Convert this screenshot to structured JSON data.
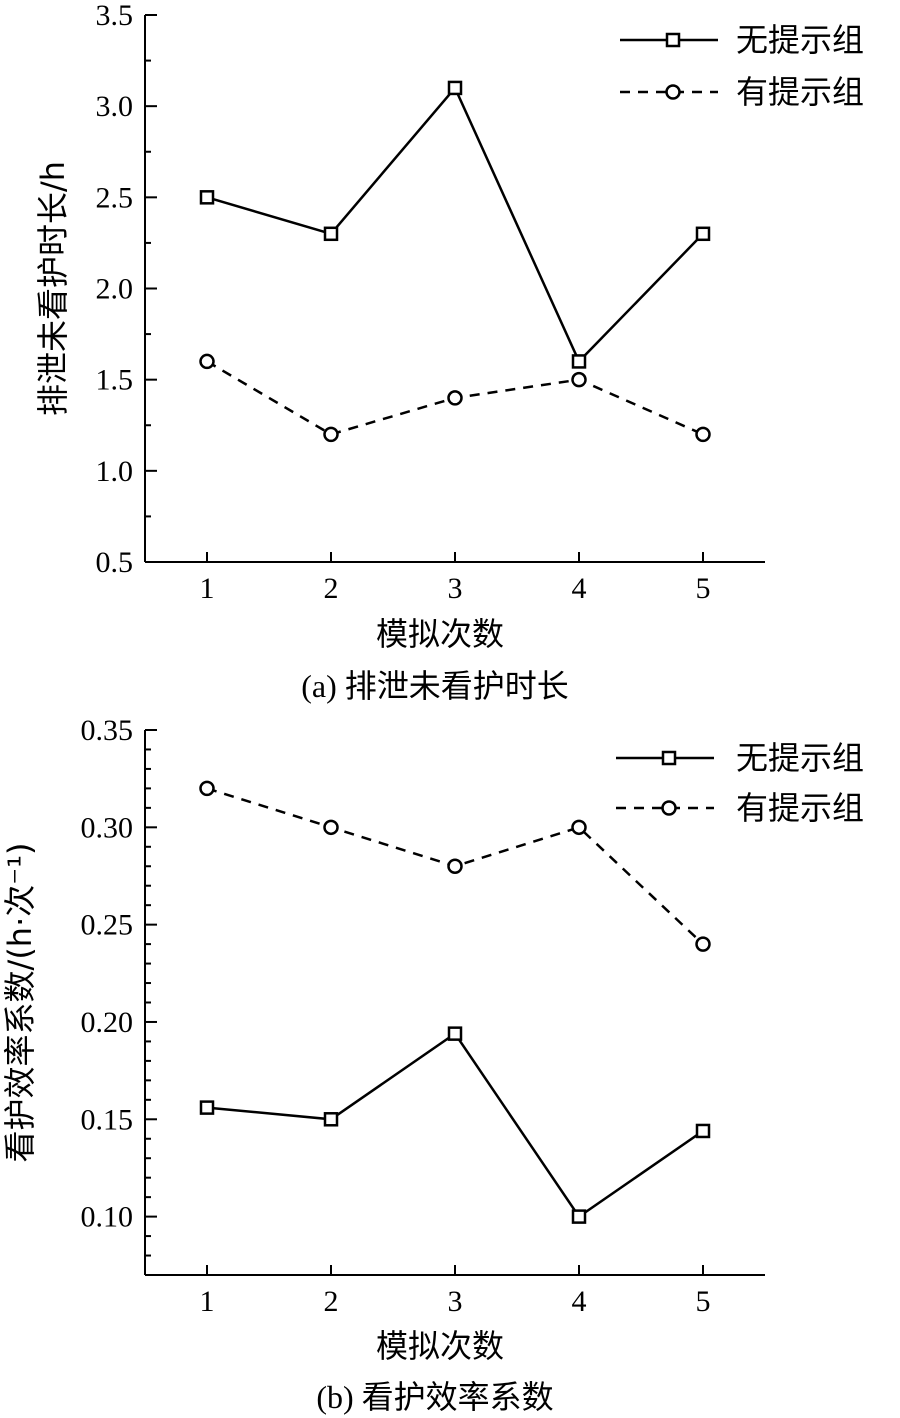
{
  "chart_data": [
    {
      "type": "line",
      "x": [
        1,
        2,
        3,
        4,
        5
      ],
      "xlim": [
        0.5,
        5.5
      ],
      "ylim": [
        0.5,
        3.5
      ],
      "yticks": [
        "0.5",
        "1.0",
        "1.5",
        "2.0",
        "2.5",
        "3.0",
        "3.5"
      ],
      "xticks": [
        "1",
        "2",
        "3",
        "4",
        "5"
      ],
      "xlabel": "模拟次数",
      "ylabel": "排泄未看护时长/h",
      "caption": "(a) 排泄未看护时长",
      "legend_position": "top-right",
      "grid": false,
      "series": [
        {
          "name": "无提示组",
          "marker": "square",
          "line": "solid",
          "values": [
            2.5,
            2.3,
            3.1,
            1.6,
            2.3
          ]
        },
        {
          "name": "有提示组",
          "marker": "circle",
          "line": "dashed",
          "values": [
            1.6,
            1.2,
            1.4,
            1.5,
            1.2
          ]
        }
      ]
    },
    {
      "type": "line",
      "x": [
        1,
        2,
        3,
        4,
        5
      ],
      "xlim": [
        0.5,
        5.5
      ],
      "ylim": [
        0.07,
        0.35
      ],
      "yticks": [
        "0.10",
        "0.15",
        "0.20",
        "0.25",
        "0.30",
        "0.35"
      ],
      "xticks": [
        "1",
        "2",
        "3",
        "4",
        "5"
      ],
      "xlabel": "模拟次数",
      "ylabel": "看护效率系数/(h·次⁻¹)",
      "caption": "(b) 看护效率系数",
      "legend_position": "top-right",
      "grid": false,
      "series": [
        {
          "name": "无提示组",
          "marker": "square",
          "line": "solid",
          "values": [
            0.156,
            0.15,
            0.194,
            0.1,
            0.144
          ]
        },
        {
          "name": "有提示组",
          "marker": "circle",
          "line": "dashed",
          "values": [
            0.32,
            0.3,
            0.28,
            0.3,
            0.24
          ]
        }
      ]
    }
  ]
}
